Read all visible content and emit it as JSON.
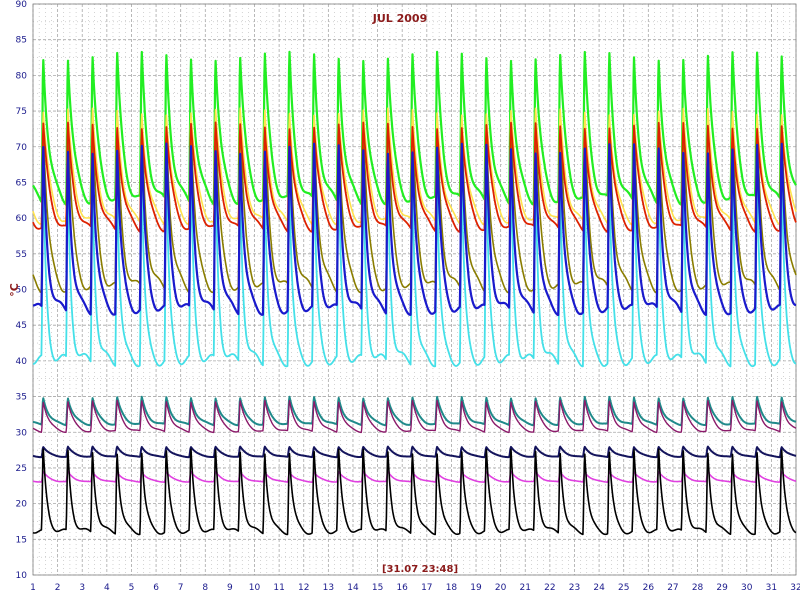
{
  "chart_data": {
    "type": "line",
    "title": "JUL 2009",
    "ylabel": "°C",
    "status_label": "[31.07 23:48]",
    "xlim": [
      1,
      32
    ],
    "ylim": [
      10,
      90
    ],
    "x_ticks": [
      1,
      2,
      3,
      4,
      5,
      6,
      7,
      8,
      9,
      10,
      11,
      12,
      13,
      14,
      15,
      16,
      17,
      18,
      19,
      20,
      21,
      22,
      23,
      24,
      25,
      26,
      27,
      28,
      29,
      30,
      31,
      32
    ],
    "y_ticks": [
      10,
      15,
      20,
      25,
      30,
      35,
      40,
      45,
      50,
      55,
      60,
      65,
      70,
      75,
      80,
      85,
      90
    ],
    "grid": true,
    "colors": {
      "title": "#8b1a1a",
      "axis_text": "#1a1a8c",
      "ylabel": "#8b1a1a",
      "status": "#8b1a1a",
      "grid": "#a8a8a8"
    },
    "series": [
      {
        "color": "#22ee22",
        "base": 62,
        "peak": 83.5,
        "decay": 0.55,
        "width": 2.2
      },
      {
        "color": "#8a7d00",
        "base": 50,
        "peak": 75,
        "decay": 0.45,
        "width": 1.6
      },
      {
        "color": "#ffe34d",
        "base": 59,
        "peak": 75.5,
        "decay": 0.6,
        "width": 1.6
      },
      {
        "color": "#dd2200",
        "base": 58,
        "peak": 73.5,
        "decay": 0.6,
        "width": 1.8
      },
      {
        "color": "#44e0e8",
        "base": 40,
        "peak": 67,
        "decay": 0.3,
        "width": 1.8
      },
      {
        "color": "#1a1acc",
        "base": 47,
        "peak": 71,
        "decay": 0.4,
        "width": 2.2
      },
      {
        "color": "#1f8a8a",
        "base": 31,
        "peak": 35,
        "decay": 0.55,
        "width": 2.0
      },
      {
        "color": "#8b1a6a",
        "base": 30,
        "peak": 34.5,
        "decay": 0.55,
        "width": 1.4
      },
      {
        "color": "#14145c",
        "base": 26.5,
        "peak": 28,
        "decay": 0.6,
        "width": 2.0
      },
      {
        "color": "#e040e0",
        "base": 23,
        "peak": 24.5,
        "decay": 0.6,
        "width": 1.6
      },
      {
        "color": "#000000",
        "base": 16,
        "peak": 28,
        "decay": 0.35,
        "width": 1.6
      }
    ]
  }
}
